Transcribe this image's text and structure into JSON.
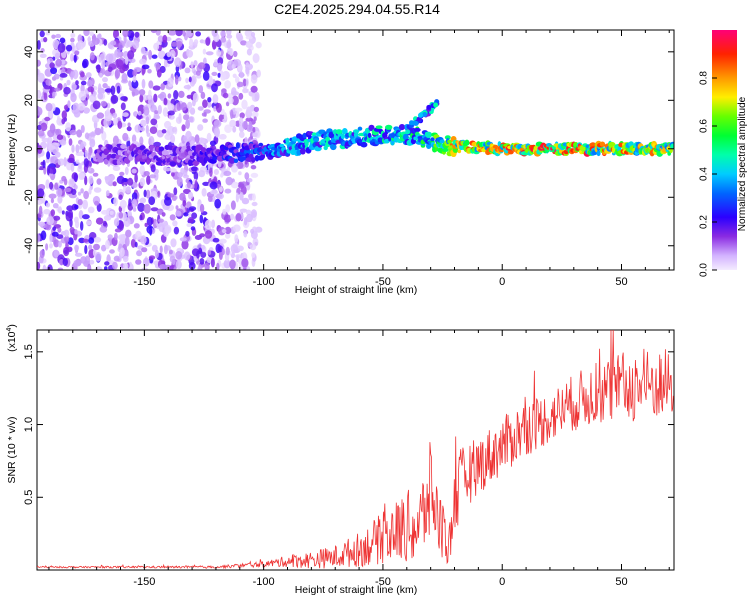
{
  "title": "C2E4.2025.294.04.55.R14",
  "chart_data": [
    {
      "type": "heatmap",
      "name": "spectrogram",
      "xlabel": "Height of straight line (km)",
      "ylabel": "Frequency (Hz)",
      "xlim": [
        -195,
        72
      ],
      "ylim": [
        -50,
        49
      ],
      "xticks": [
        -150,
        -100,
        -50,
        0,
        50
      ],
      "xtick_labels": [
        "-150",
        "-100",
        "-50",
        "0",
        "50"
      ],
      "yticks": [
        -40,
        -20,
        0,
        20,
        40
      ],
      "ytick_labels": [
        "-40",
        "-20",
        "0",
        "20",
        "40"
      ],
      "trace": {
        "x": [
          -165,
          -135,
          -120,
          -100,
          -80,
          -60,
          -40,
          -30,
          -25,
          -20,
          0,
          25,
          50,
          72
        ],
        "freq_center": [
          -2,
          -3,
          -2,
          -1,
          3,
          5,
          6,
          3,
          2,
          1,
          0,
          0,
          0,
          0
        ],
        "peak_amplitude": [
          0.2,
          0.2,
          0.25,
          0.4,
          0.5,
          0.5,
          0.55,
          0.6,
          0.8,
          0.9,
          0.95,
          1.0,
          0.9,
          0.85
        ]
      },
      "drift_branch": {
        "x": [
          -40,
          -33,
          -27
        ],
        "freq": [
          8,
          14,
          19
        ]
      },
      "noise_region_x": [
        -195,
        -110
      ],
      "colorbar": {
        "label": "Normalized spectral amplitude",
        "range": [
          0,
          1
        ],
        "ticks": [
          0.0,
          0.2,
          0.4,
          0.6,
          0.8
        ],
        "tick_labels": [
          "0.0",
          "0.2",
          "0.4",
          "0.6",
          "0.8"
        ]
      }
    },
    {
      "type": "line",
      "name": "snr",
      "xlabel": "Height of straight line (km)",
      "ylabel": "SNR (10 * v/v)",
      "multiplier_label": "(x10",
      "multiplier_exponent": "4",
      "multiplier_close": ")",
      "xlim": [
        -195,
        72
      ],
      "ylim": [
        0,
        1.65
      ],
      "xticks": [
        -150,
        -100,
        -50,
        0,
        50
      ],
      "xtick_labels": [
        "-150",
        "-100",
        "-50",
        "0",
        "50"
      ],
      "yticks": [
        0.5,
        1.0,
        1.5
      ],
      "ytick_labels": [
        "0.5",
        "1.0",
        "1.5"
      ],
      "color": "#ee3333",
      "envelope": {
        "x": [
          -195,
          -120,
          -100,
          -90,
          -80,
          -70,
          -60,
          -50,
          -40,
          -35,
          -30,
          -25,
          -22,
          -20,
          -15,
          -10,
          0,
          10,
          20,
          30,
          40,
          50,
          60,
          72
        ],
        "mean": [
          0.02,
          0.02,
          0.04,
          0.06,
          0.07,
          0.09,
          0.14,
          0.22,
          0.3,
          0.28,
          0.55,
          0.25,
          0.18,
          0.5,
          0.65,
          0.72,
          0.85,
          0.98,
          1.05,
          1.15,
          1.22,
          1.25,
          1.27,
          1.28
        ],
        "amplitude": [
          0.005,
          0.008,
          0.02,
          0.04,
          0.06,
          0.08,
          0.12,
          0.18,
          0.25,
          0.28,
          0.35,
          0.2,
          0.15,
          0.3,
          0.22,
          0.2,
          0.2,
          0.2,
          0.18,
          0.2,
          0.22,
          0.25,
          0.25,
          0.25
        ]
      }
    }
  ]
}
